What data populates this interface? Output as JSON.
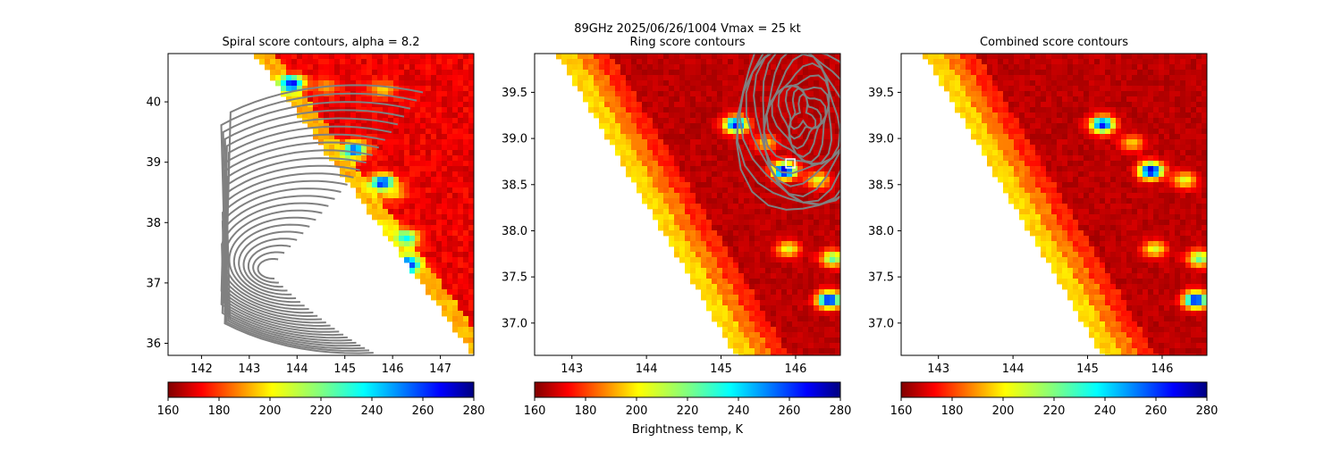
{
  "suptitle_line1": "89GHz  2025/06/26/1004    Vmax = 25 kt",
  "colorbar_label": "Brightness temp, K",
  "colormap": "jet",
  "chart_data": [
    {
      "type": "heatmap",
      "title": "Spiral score contours, alpha =  8.2",
      "xlim": [
        141.3,
        147.7
      ],
      "ylim": [
        35.8,
        40.8
      ],
      "xticks": [
        142,
        143,
        144,
        145,
        146,
        147
      ],
      "yticks": [
        36,
        37,
        38,
        39,
        40
      ],
      "ytick_labels": [
        "36",
        "37",
        "38",
        "39",
        "40"
      ],
      "swath_edge": [
        [
          143.1,
          40.8
        ],
        [
          147.7,
          35.8
        ]
      ],
      "colorbar": {
        "min": 160,
        "max": 280,
        "ticks": [
          160,
          180,
          200,
          220,
          240,
          260,
          280
        ]
      },
      "cold_spots": [
        {
          "lon": 143.9,
          "lat": 40.3,
          "tb": 175
        },
        {
          "lon": 144.6,
          "lat": 40.25,
          "tb": 245
        },
        {
          "lon": 145.8,
          "lat": 40.2,
          "tb": 238
        },
        {
          "lon": 145.2,
          "lat": 39.2,
          "tb": 180
        },
        {
          "lon": 145.8,
          "lat": 38.65,
          "tb": 165
        },
        {
          "lon": 146.0,
          "lat": 38.5,
          "tb": 235
        },
        {
          "lon": 145.7,
          "lat": 37.9,
          "tb": 230
        },
        {
          "lon": 146.3,
          "lat": 37.75,
          "tb": 205
        },
        {
          "lon": 146.3,
          "lat": 37.3,
          "tb": 170
        },
        {
          "lon": 146.7,
          "lat": 37.0,
          "tb": 245
        }
      ],
      "contours": "spiral score"
    },
    {
      "type": "heatmap",
      "title": "Ring score contours",
      "xlim": [
        142.5,
        146.6
      ],
      "ylim": [
        36.65,
        39.92
      ],
      "xticks": [
        143,
        144,
        145,
        146
      ],
      "yticks": [
        37.0,
        37.5,
        38.0,
        38.5,
        39.0,
        39.5
      ],
      "ytick_labels": [
        "37.0",
        "37.5",
        "38.0",
        "38.5",
        "39.0",
        "39.5"
      ],
      "swath_edge": [
        [
          142.8,
          39.92
        ],
        [
          145.2,
          36.65
        ]
      ],
      "colorbar": {
        "min": 160,
        "max": 280,
        "ticks": [
          160,
          180,
          200,
          220,
          240,
          260,
          280
        ]
      },
      "cold_spots": [
        {
          "lon": 145.2,
          "lat": 39.15,
          "tb": 175
        },
        {
          "lon": 145.6,
          "lat": 38.95,
          "tb": 240
        },
        {
          "lon": 145.85,
          "lat": 38.65,
          "tb": 165
        },
        {
          "lon": 146.3,
          "lat": 38.55,
          "tb": 230
        },
        {
          "lon": 145.9,
          "lat": 37.8,
          "tb": 230
        },
        {
          "lon": 146.5,
          "lat": 37.7,
          "tb": 215
        },
        {
          "lon": 146.45,
          "lat": 37.25,
          "tb": 170
        }
      ],
      "contours": "ring score",
      "marker": {
        "lon": 145.93,
        "lat": 38.73,
        "shape": "square"
      }
    },
    {
      "type": "heatmap",
      "title": "Combined score contours",
      "xlim": [
        142.5,
        146.6
      ],
      "ylim": [
        36.65,
        39.92
      ],
      "xticks": [
        143,
        144,
        145,
        146
      ],
      "yticks": [
        37.0,
        37.5,
        38.0,
        38.5,
        39.0,
        39.5
      ],
      "ytick_labels": [
        "37.0",
        "37.5",
        "38.0",
        "38.5",
        "39.0",
        "39.5"
      ],
      "swath_edge": [
        [
          142.8,
          39.92
        ],
        [
          145.2,
          36.65
        ]
      ],
      "colorbar": {
        "min": 160,
        "max": 280,
        "ticks": [
          160,
          180,
          200,
          220,
          240,
          260,
          280
        ]
      },
      "cold_spots": [
        {
          "lon": 145.2,
          "lat": 39.15,
          "tb": 175
        },
        {
          "lon": 145.6,
          "lat": 38.95,
          "tb": 240
        },
        {
          "lon": 145.85,
          "lat": 38.65,
          "tb": 165
        },
        {
          "lon": 146.3,
          "lat": 38.55,
          "tb": 230
        },
        {
          "lon": 145.9,
          "lat": 37.8,
          "tb": 230
        },
        {
          "lon": 146.5,
          "lat": 37.7,
          "tb": 215
        },
        {
          "lon": 146.45,
          "lat": 37.25,
          "tb": 170
        }
      ],
      "contours": "none"
    }
  ]
}
